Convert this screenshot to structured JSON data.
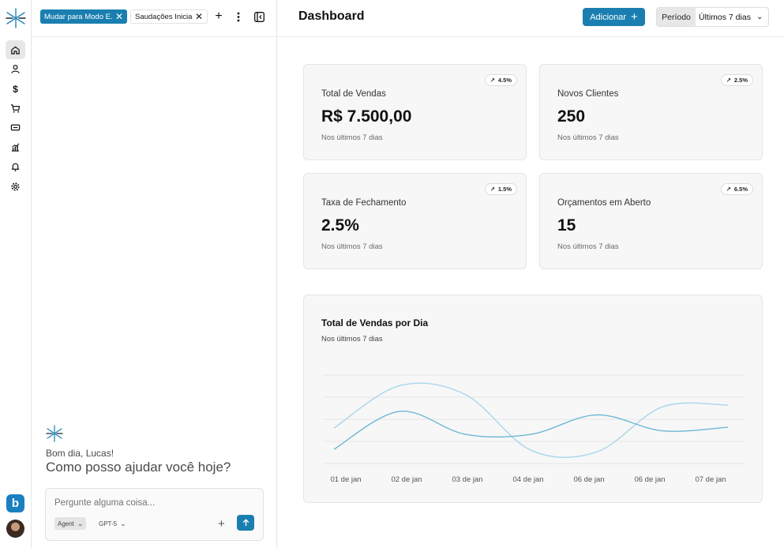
{
  "rail": {
    "items": [
      {
        "icon": "home-icon",
        "active": true
      },
      {
        "icon": "user-icon",
        "active": false
      },
      {
        "icon": "dollar-icon",
        "active": false
      },
      {
        "icon": "cart-icon",
        "active": false
      },
      {
        "icon": "ticket-icon",
        "active": false
      },
      {
        "icon": "chart-icon",
        "active": false
      },
      {
        "icon": "bell-icon",
        "active": false
      },
      {
        "icon": "gear-icon",
        "active": false
      }
    ],
    "brand_letter": "b"
  },
  "chat": {
    "tabs": [
      {
        "label": "Mudar para Modo E...",
        "active": true
      },
      {
        "label": "Saudações Iniciais",
        "active": false
      }
    ],
    "greeting": "Bom dia, Lucas!",
    "prompt": "Como posso ajudar você hoje?",
    "composer": {
      "placeholder": "Pergunte alguma coisa...",
      "mode": "Agent",
      "model": "GPT-5"
    }
  },
  "header": {
    "title": "Dashboard",
    "add_label": "Adicionar",
    "period_label": "Período",
    "period_value": "Últimos 7 dias"
  },
  "cards": [
    {
      "title": "Total de Vendas",
      "value": "R$ 7.500,00",
      "subtitle": "Nos últimos 7 dias",
      "badge": "4.5%"
    },
    {
      "title": "Novos Clientes",
      "value": "250",
      "subtitle": "Nos últimos 7 dias",
      "badge": "2.5%"
    },
    {
      "title": "Taxa de Fechamento",
      "value": "2.5%",
      "subtitle": "Nos últimos 7 dias",
      "badge": "1.5%"
    },
    {
      "title": "Orçamentos em Aberto",
      "value": "15",
      "subtitle": "Nos últimos 7 dias",
      "badge": "6.5%"
    }
  ],
  "colors": {
    "accent": "#1a7fb0",
    "series_dark": "#6fb7d6",
    "series_light": "#a9d6ea"
  },
  "chart_data": {
    "type": "line",
    "title": "Total de Vendas por Dia",
    "subtitle": "Nos últimos 7 dias",
    "categories": [
      "01 de jan",
      "02 de jan",
      "03 de jan",
      "04 de jan",
      "06 de jan",
      "06 de jan",
      "07 de jan"
    ],
    "series": [
      {
        "values": [
          40,
          88,
          78,
          15,
          13,
          64,
          66
        ]
      },
      {
        "values": [
          16,
          59,
          33,
          33,
          55,
          37,
          41
        ]
      }
    ],
    "ylim": [
      0,
      100
    ],
    "grid": true,
    "legend": "none"
  }
}
